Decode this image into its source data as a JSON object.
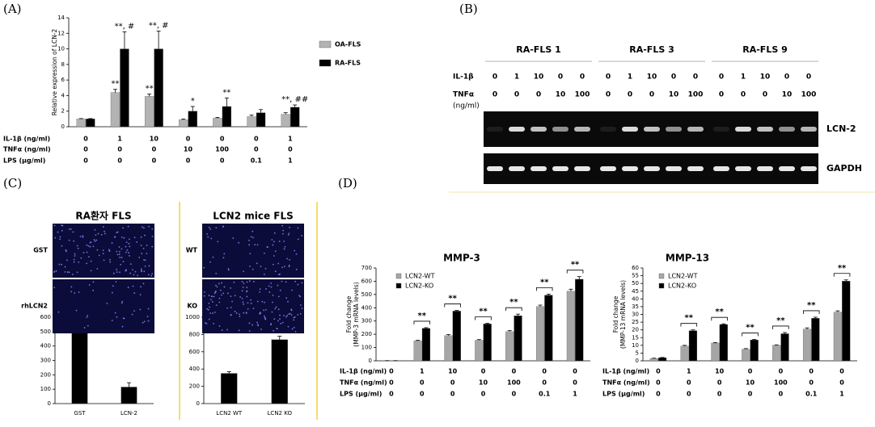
{
  "panel_labels": [
    "(A)",
    "(B)",
    "(C)",
    "(D)"
  ],
  "chart_data": [
    {
      "type": "bar",
      "ylabel": "Relative expression of LCN-2",
      "ylim": [
        0,
        14
      ],
      "yticks": [
        0,
        2,
        4,
        6,
        8,
        10,
        12,
        14
      ],
      "series": [
        {
          "name": "OA-FLS",
          "color": "#b3b3b3",
          "values": [
            1,
            4.4,
            3.9,
            0.9,
            1.1,
            1.3,
            1.6
          ],
          "errors": [
            0.05,
            0.4,
            0.3,
            0.1,
            0.1,
            0.2,
            0.2
          ],
          "annotations": [
            null,
            "**",
            "**",
            null,
            null,
            null,
            null
          ]
        },
        {
          "name": "RA-FLS",
          "color": "#000000",
          "values": [
            1,
            10,
            10,
            2,
            2.6,
            1.8,
            2.5
          ],
          "errors": [
            0.05,
            2.2,
            2.3,
            0.6,
            1.1,
            0.4,
            0.3
          ],
          "annotations": [
            null,
            "**, #",
            "**, #",
            "*",
            "**",
            null,
            "**, ##"
          ]
        }
      ],
      "treatments": [
        {
          "label": "IL-1β (ng/ml)",
          "values": [
            0,
            1,
            10,
            0,
            0,
            0,
            1
          ]
        },
        {
          "label": "TNFα (ng/ml)",
          "values": [
            0,
            0,
            0,
            10,
            100,
            0,
            0
          ]
        },
        {
          "label": "LPS (μg/ml)",
          "values": [
            0,
            0,
            0,
            0,
            0,
            0.1,
            1
          ]
        }
      ]
    },
    {
      "type": "bar",
      "categories": [
        "GST",
        "LCN-2"
      ],
      "values": [
        490,
        115
      ],
      "errors": [
        60,
        30
      ],
      "color": "#000000",
      "ylim": [
        0,
        600
      ],
      "yticks": [
        0,
        100,
        200,
        300,
        400,
        500,
        600
      ]
    },
    {
      "type": "bar",
      "categories": [
        "LCN2 WT",
        "LCN2 KO"
      ],
      "values": [
        350,
        740
      ],
      "errors": [
        20,
        40
      ],
      "color": "#000000",
      "ylim": [
        0,
        1000
      ],
      "yticks": [
        0,
        200,
        400,
        600,
        800,
        1000
      ]
    },
    {
      "type": "bar",
      "title": "MMP-3",
      "ylabel": [
        "Fold change",
        "(MMP-3 mRNA levels)"
      ],
      "ylim": [
        0,
        700
      ],
      "yticks": [
        0,
        100,
        200,
        300,
        400,
        500,
        600,
        700
      ],
      "series": [
        {
          "name": "LCN2-WT",
          "color": "#a6a6a6",
          "values": [
            1,
            150,
            190,
            155,
            220,
            410,
            525
          ],
          "errors": [
            0.5,
            5,
            8,
            5,
            8,
            10,
            15
          ]
        },
        {
          "name": "LCN2-KO",
          "color": "#000000",
          "values": [
            1,
            245,
            375,
            278,
            340,
            495,
            615
          ],
          "errors": [
            0.5,
            5,
            5,
            5,
            12,
            8,
            20
          ]
        }
      ],
      "significance": [
        null,
        "**",
        "**",
        "**",
        "**",
        "**",
        "**"
      ],
      "treatments": [
        {
          "label": "IL-1β (ng/ml)",
          "values": [
            0,
            1,
            10,
            0,
            0,
            0,
            0
          ]
        },
        {
          "label": "TNFα (ng/ml)",
          "values": [
            0,
            0,
            0,
            10,
            100,
            0,
            0
          ]
        },
        {
          "label": "LPS (μg/ml)",
          "values": [
            0,
            0,
            0,
            0,
            0,
            0.1,
            1
          ]
        }
      ]
    },
    {
      "type": "bar",
      "title": "MMP-13",
      "ylabel": [
        "Fold change",
        "(MMP-13 mRNA levels)"
      ],
      "ylim": [
        0,
        60
      ],
      "yticks": [
        0,
        5,
        10,
        15,
        20,
        25,
        30,
        35,
        40,
        45,
        50,
        55,
        60
      ],
      "series": [
        {
          "name": "LCN2-WT",
          "color": "#a6a6a6",
          "values": [
            1.5,
            9.5,
            11.5,
            7.5,
            10,
            20.5,
            31.5
          ],
          "errors": [
            0.2,
            0.5,
            0.3,
            0.4,
            0.3,
            0.8,
            0.8
          ]
        },
        {
          "name": "LCN2-KO",
          "color": "#000000",
          "values": [
            2,
            19.5,
            23.5,
            13.5,
            17.5,
            27.5,
            51.5
          ],
          "errors": [
            0.2,
            0.5,
            0.4,
            0.3,
            0.8,
            0.7,
            0.8
          ]
        }
      ],
      "significance": [
        null,
        "**",
        "**",
        "**",
        "**",
        "**",
        "**"
      ],
      "treatments": [
        {
          "label": "IL-1β (ng/ml)",
          "values": [
            0,
            1,
            10,
            0,
            0,
            0,
            0
          ]
        },
        {
          "label": "TNFα (ng/ml)",
          "values": [
            0,
            0,
            0,
            10,
            100,
            0,
            0
          ]
        },
        {
          "label": "LPS (μg/ml)",
          "values": [
            0,
            0,
            0,
            0,
            0,
            0.1,
            1
          ]
        }
      ]
    }
  ],
  "gel": {
    "groups": [
      "RA-FLS 1",
      "RA-FLS 3",
      "RA-FLS 9"
    ],
    "rows": [
      {
        "label": "IL-1β",
        "values": [
          0,
          1,
          10,
          0,
          0,
          0,
          1,
          10,
          0,
          0,
          0,
          1,
          10,
          0,
          0
        ]
      },
      {
        "label": "TNFα",
        "values": [
          0,
          0,
          0,
          10,
          100,
          0,
          0,
          0,
          10,
          100,
          0,
          0,
          0,
          10,
          100
        ]
      }
    ],
    "unit": "(ng/ml)",
    "bands": [
      "LCN-2",
      "GAPDH"
    ]
  },
  "microscopy": {
    "titles": [
      "RA환자 FLS",
      "LCN2 mice FLS"
    ],
    "row_labels": [
      [
        "GST",
        "rhLCN2"
      ],
      [
        "WT",
        "KO"
      ]
    ]
  }
}
